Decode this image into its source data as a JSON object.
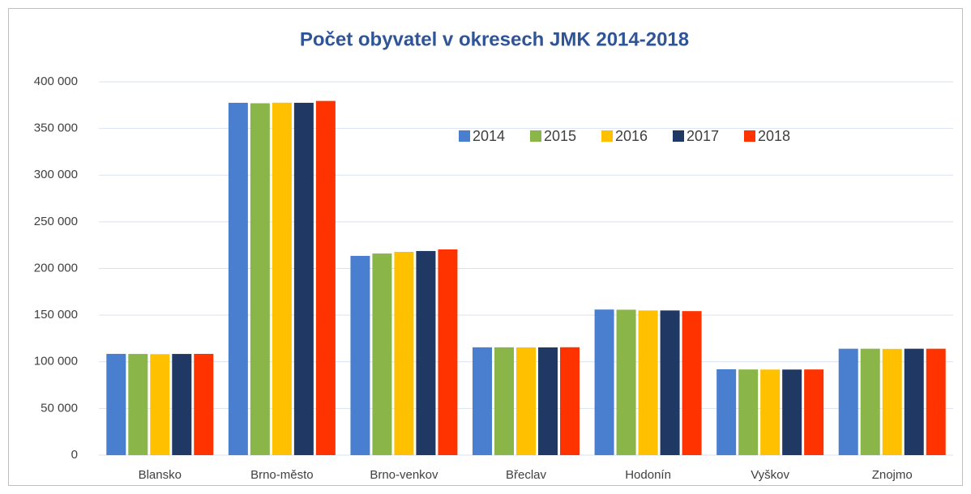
{
  "chart_data": {
    "type": "bar",
    "title": "Počet obyvatel v okresech JMK 2014-2018",
    "categories": [
      "Blansko",
      "Brno-město",
      "Brno-venkov",
      "Břeclav",
      "Hodonín",
      "Vyškov",
      "Znojmo"
    ],
    "series": [
      {
        "name": "2014",
        "color": "#4a7fd0",
        "values": [
          108500,
          377500,
          213500,
          115500,
          156000,
          92000,
          114000
        ]
      },
      {
        "name": "2015",
        "color": "#8ab548",
        "values": [
          108400,
          377000,
          216000,
          115500,
          155800,
          91800,
          114000
        ]
      },
      {
        "name": "2016",
        "color": "#ffc000",
        "values": [
          108200,
          377600,
          217800,
          115400,
          155000,
          91700,
          113800
        ]
      },
      {
        "name": "2017",
        "color": "#1f3864",
        "values": [
          108400,
          377500,
          218700,
          115400,
          155000,
          91700,
          114000
        ]
      },
      {
        "name": "2018",
        "color": "#ff3300",
        "values": [
          108500,
          379500,
          220400,
          115600,
          154300,
          91800,
          114000
        ]
      }
    ],
    "ylim": [
      0,
      400000
    ],
    "yticks": [
      0,
      {
        "value": 50000,
        "label": "50 000"
      },
      {
        "value": 100000,
        "label": "100 000"
      },
      {
        "value": 150000,
        "label": "150 000"
      },
      {
        "value": 200000,
        "label": "200 000"
      },
      {
        "value": 250000,
        "label": "250 000"
      },
      {
        "value": 300000,
        "label": "300 000"
      },
      {
        "value": 350000,
        "label": "350 000"
      },
      {
        "value": 400000,
        "label": "400 000"
      }
    ],
    "grid": true
  }
}
